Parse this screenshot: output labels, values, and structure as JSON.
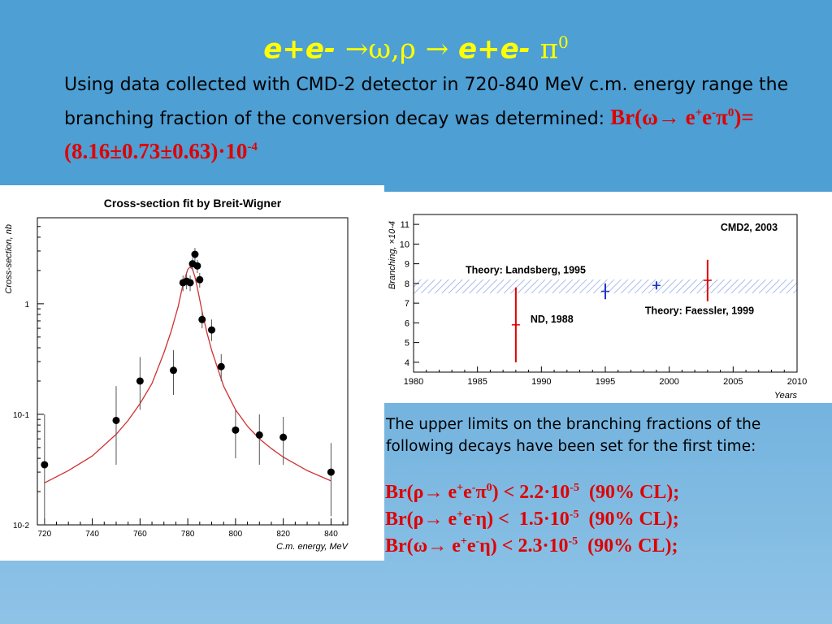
{
  "slide": {
    "title_parts": {
      "a": "e+e-",
      "b": "→ω,ρ",
      "c": "→",
      "d": "e+e-",
      "e": "π",
      "f": "0"
    },
    "intro_text": "Using data collected with CMD-2 detector in 720-840 MeV c.m. energy range the branching fraction of the conversion decay was determined:",
    "br_main": {
      "prefix": "Br(ω→ e",
      "sup1": "+",
      "mid": "e",
      "sup2": "-",
      "pi": "π",
      "sup3": "0",
      "value": ")=(8.16±0.73±0.63)·10",
      "exp": "-4"
    },
    "limits_intro": "The upper limits on the branching fractions of the following decays have been set for the first time:",
    "limits": [
      {
        "a": "Br(ρ→ e",
        "s1": "+",
        "b": "e",
        "s2": "-",
        "c": "π",
        "s3": "0",
        "d": ") < 2.2·10",
        "s4": "-5",
        "e": "  (90% CL);"
      },
      {
        "a": "Br(ρ→ e",
        "s1": "+",
        "b": "e",
        "s2": "-",
        "c": "η) <  1.5·10",
        "s3": "",
        "d": "",
        "s4": "-5",
        "e": "  (90% CL);"
      },
      {
        "a": "Br(ω→ e",
        "s1": "+",
        "b": "e",
        "s2": "-",
        "c": "η) < 2.3·10",
        "s3": "",
        "d": "",
        "s4": "-5",
        "e": "  (90% CL);"
      }
    ]
  },
  "chart_data": [
    {
      "type": "scatter",
      "title": "Cross-section fit by Breit-Wigner",
      "xlabel": "C.m. energy, MeV",
      "ylabel": "Cross-section, nb",
      "xlim": [
        717,
        847
      ],
      "ylog": true,
      "ylim": [
        0.01,
        6
      ],
      "xticks": [
        720,
        740,
        760,
        780,
        800,
        820,
        840
      ],
      "yticks": [
        {
          "v": 1,
          "label": "1"
        },
        {
          "v": 0.1,
          "label": "10-1"
        },
        {
          "v": 0.01,
          "label": "10-2"
        }
      ],
      "points": [
        {
          "x": 720,
          "y": 0.035,
          "lo": 0.01,
          "hi": 0.1
        },
        {
          "x": 750,
          "y": 0.088,
          "lo": 0.035,
          "hi": 0.18
        },
        {
          "x": 760,
          "y": 0.2,
          "lo": 0.11,
          "hi": 0.33
        },
        {
          "x": 774,
          "y": 0.25,
          "lo": 0.15,
          "hi": 0.38
        },
        {
          "x": 778,
          "y": 1.55,
          "lo": 1.3,
          "hi": 1.8
        },
        {
          "x": 779.5,
          "y": 1.6,
          "lo": 1.35,
          "hi": 1.85
        },
        {
          "x": 781,
          "y": 1.55,
          "lo": 1.3,
          "hi": 1.8
        },
        {
          "x": 782,
          "y": 2.3,
          "lo": 2.0,
          "hi": 2.6
        },
        {
          "x": 783,
          "y": 2.8,
          "lo": 2.45,
          "hi": 3.2
        },
        {
          "x": 784,
          "y": 2.2,
          "lo": 1.9,
          "hi": 2.5
        },
        {
          "x": 785,
          "y": 1.65,
          "lo": 1.4,
          "hi": 1.9
        },
        {
          "x": 786,
          "y": 0.72,
          "lo": 0.6,
          "hi": 0.85
        },
        {
          "x": 790,
          "y": 0.58,
          "lo": 0.46,
          "hi": 0.72
        },
        {
          "x": 794,
          "y": 0.27,
          "lo": 0.2,
          "hi": 0.35
        },
        {
          "x": 800,
          "y": 0.072,
          "lo": 0.04,
          "hi": 0.11
        },
        {
          "x": 810,
          "y": 0.065,
          "lo": 0.035,
          "hi": 0.1
        },
        {
          "x": 820,
          "y": 0.062,
          "lo": 0.035,
          "hi": 0.095
        },
        {
          "x": 840,
          "y": 0.03,
          "lo": 0.012,
          "hi": 0.055
        }
      ],
      "fit": {
        "name": "Breit-Wigner fit",
        "color": "#d03030",
        "x": [
          720,
          730,
          740,
          750,
          755,
          760,
          765,
          770,
          773,
          776,
          778,
          780,
          781,
          782,
          783,
          784,
          786,
          788,
          790,
          795,
          800,
          805,
          810,
          815,
          820,
          830,
          840
        ],
        "y": [
          0.024,
          0.031,
          0.042,
          0.066,
          0.088,
          0.125,
          0.19,
          0.36,
          0.56,
          0.95,
          1.5,
          2.05,
          2.15,
          2.05,
          1.75,
          1.4,
          0.85,
          0.55,
          0.38,
          0.18,
          0.11,
          0.078,
          0.06,
          0.049,
          0.041,
          0.031,
          0.025
        ]
      }
    },
    {
      "type": "scatter",
      "xlabel": "Years",
      "ylabel": "Branching, ×10-4",
      "xlim": [
        1980,
        2010
      ],
      "ylim": [
        3.5,
        11.5
      ],
      "xticks": [
        1980,
        1985,
        1990,
        1995,
        2000,
        2005,
        2010
      ],
      "yticks": [
        4,
        5,
        6,
        7,
        8,
        9,
        10,
        11
      ],
      "band": {
        "from": 7.5,
        "to": 8.2,
        "color": "#8ea8e6"
      },
      "points": [
        {
          "x": 1988,
          "y": 5.9,
          "lo": 4.0,
          "hi": 7.8,
          "color": "#e00000",
          "label": "ND, 1988"
        },
        {
          "x": 1995,
          "y": 7.6,
          "lo": 7.2,
          "hi": 8.0,
          "color": "#1f35c8",
          "label": "Theory: Landsberg, 1995"
        },
        {
          "x": 1999,
          "y": 7.9,
          "lo": 7.9,
          "hi": 7.9,
          "color": "#1f35c8",
          "label": "Theory: Faessler, 1999"
        },
        {
          "x": 2003,
          "y": 8.16,
          "lo": 7.1,
          "hi": 9.2,
          "color": "#e00000",
          "label": "CMD2, 2003"
        }
      ]
    }
  ]
}
